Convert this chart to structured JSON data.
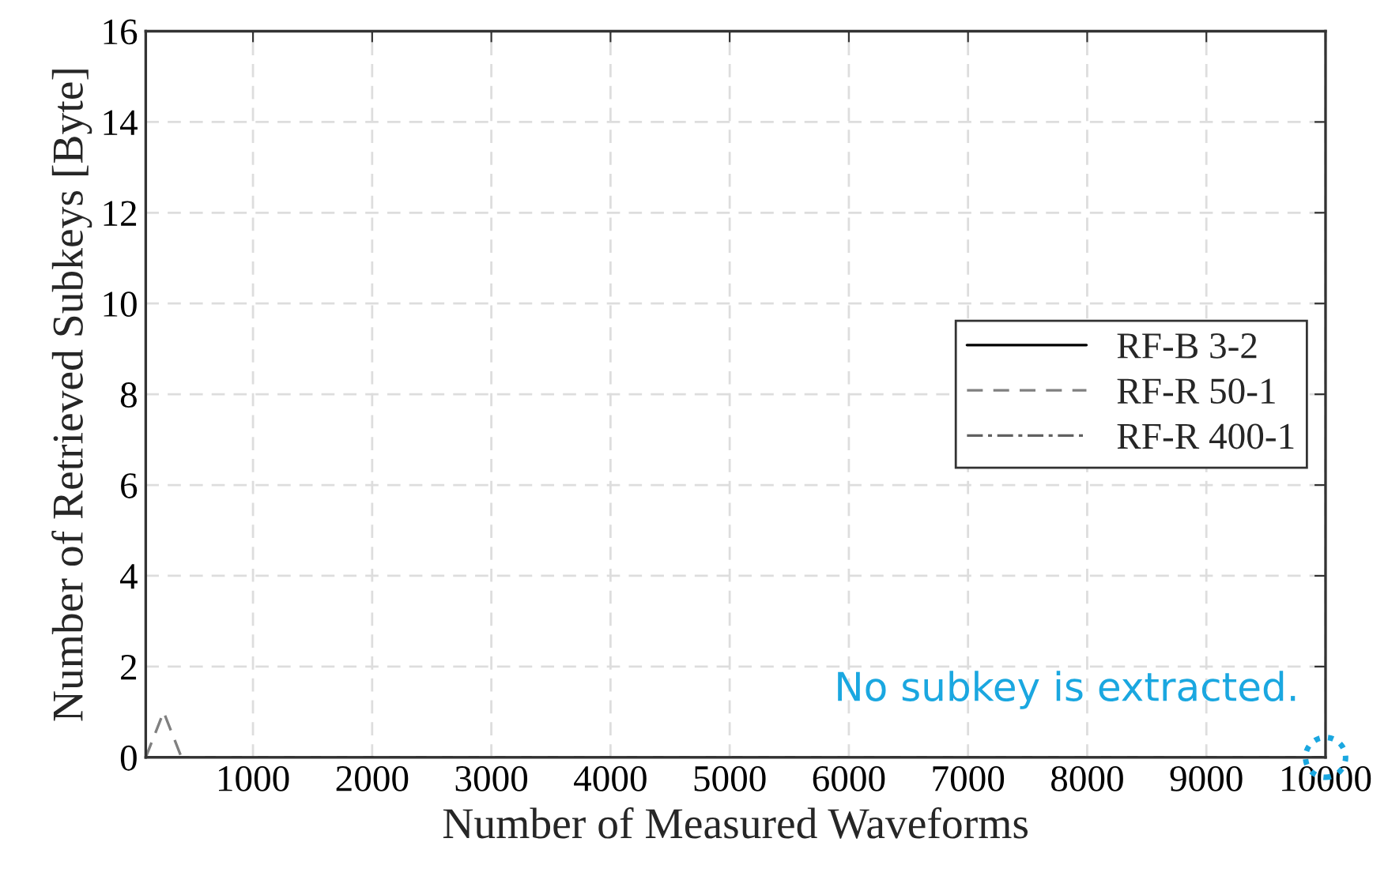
{
  "chart_data": {
    "type": "line",
    "xlabel": "Number of Measured Waveforms",
    "ylabel": "Number of Retrieved Subkeys [Byte]",
    "series": [
      {
        "name": "RF-B 3-2",
        "color": "#000000",
        "line_style": "solid",
        "x": [
          100,
          10000
        ],
        "values": [
          0,
          0
        ]
      },
      {
        "name": "RF-R 50-1",
        "color": "#808080",
        "line_style": "dashed",
        "x": [
          100,
          250,
          400,
          10000
        ],
        "values": [
          0,
          1,
          0,
          0
        ]
      },
      {
        "name": "RF-R 400-1",
        "color": "#606060",
        "line_style": "dashdot"
      }
    ],
    "xlim": [
      100,
      10000
    ],
    "xticks": [
      1000,
      2000,
      3000,
      4000,
      5000,
      6000,
      7000,
      8000,
      9000,
      10000
    ],
    "ylim": [
      0,
      16
    ],
    "yticks": [
      0,
      2,
      4,
      6,
      8,
      10,
      12,
      14,
      16
    ],
    "grid": true,
    "legend": "right",
    "annotations": [
      {
        "text": "No subkey is extracted.",
        "x": 10000,
        "y": 0
      }
    ]
  }
}
